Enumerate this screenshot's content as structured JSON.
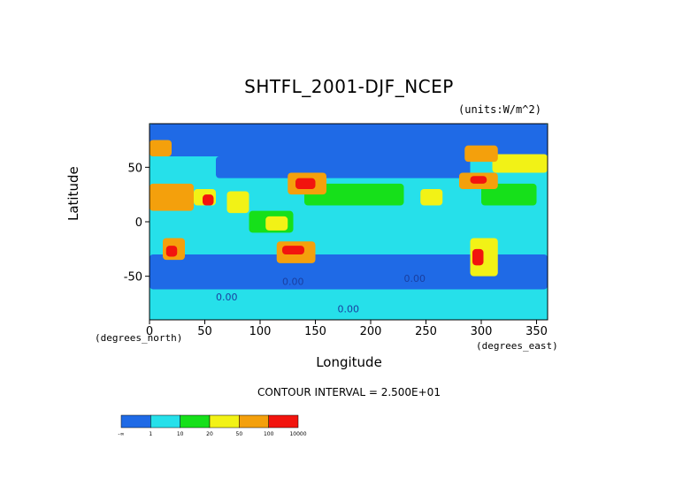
{
  "chart_data": {
    "type": "heatmap",
    "title": "SHTFL_2001-DJF_NCEP",
    "units": "(units:W/m^2)",
    "xlabel": "Longitude",
    "ylabel": "Latitude",
    "x_axis_note": "(degrees_east)",
    "y_axis_note": "(degrees_north)",
    "xlim": [
      0,
      360
    ],
    "ylim": [
      -90,
      90
    ],
    "x_ticks": [
      0,
      50,
      100,
      150,
      200,
      250,
      300,
      350
    ],
    "y_ticks": [
      50,
      0,
      -50
    ],
    "contour_interval": "CONTOUR INTERVAL = 2.500E+01",
    "contour_labels": [
      "0.00",
      "0.00",
      "0.00",
      "0.00"
    ],
    "colorbar": {
      "colors": [
        "#1f6ae6",
        "#26e0ea",
        "#16e01a",
        "#f2f216",
        "#f4a00c",
        "#f2140e"
      ],
      "tick_labels": [
        "-∞",
        "1",
        "10",
        "20",
        "50",
        "100",
        "10000"
      ]
    },
    "regions": [
      {
        "name": "southern-ocean-band",
        "lon": [
          0,
          360
        ],
        "lat": [
          -62,
          -30
        ],
        "bin": 0
      },
      {
        "name": "antarctic-coast",
        "lon": [
          0,
          360
        ],
        "lat": [
          -90,
          -62
        ],
        "bin": 1
      },
      {
        "name": "tropical-pacific",
        "lon": [
          120,
          290
        ],
        "lat": [
          -30,
          20
        ],
        "bin": 1
      },
      {
        "name": "tropical-indian",
        "lon": [
          40,
          120
        ],
        "lat": [
          -30,
          20
        ],
        "bin": 1
      },
      {
        "name": "tropical-atlantic",
        "lon": [
          300,
          360
        ],
        "lat": [
          -30,
          20
        ],
        "bin": 1
      },
      {
        "name": "subtropical-north-pacific",
        "lon": [
          140,
          230
        ],
        "lat": [
          15,
          35
        ],
        "bin": 2
      },
      {
        "name": "subtropical-north-atlantic",
        "lon": [
          300,
          350
        ],
        "lat": [
          15,
          35
        ],
        "bin": 2
      },
      {
        "name": "north-polar-cap",
        "lon": [
          0,
          360
        ],
        "lat": [
          60,
          90
        ],
        "bin": 0
      },
      {
        "name": "siberia-canada",
        "lon": [
          60,
          290
        ],
        "lat": [
          40,
          60
        ],
        "bin": 0
      },
      {
        "name": "sahara",
        "lon": [
          0,
          40
        ],
        "lat": [
          10,
          35
        ],
        "bin": 4
      },
      {
        "name": "kuroshio",
        "lon": [
          125,
          160
        ],
        "lat": [
          25,
          45
        ],
        "bin": 4
      },
      {
        "name": "kuroshio-core",
        "lon": [
          132,
          150
        ],
        "lat": [
          30,
          40
        ],
        "bin": 5
      },
      {
        "name": "gulf-stream",
        "lon": [
          280,
          315
        ],
        "lat": [
          30,
          45
        ],
        "bin": 4
      },
      {
        "name": "gulf-stream-core",
        "lon": [
          290,
          305
        ],
        "lat": [
          35,
          42
        ],
        "bin": 5
      },
      {
        "name": "australia",
        "lon": [
          115,
          150
        ],
        "lat": [
          -38,
          -18
        ],
        "bin": 4
      },
      {
        "name": "australia-core",
        "lon": [
          120,
          140
        ],
        "lat": [
          -30,
          -22
        ],
        "bin": 5
      },
      {
        "name": "south-america",
        "lon": [
          290,
          315
        ],
        "lat": [
          -50,
          -15
        ],
        "bin": 3
      },
      {
        "name": "south-america-core",
        "lon": [
          292,
          302
        ],
        "lat": [
          -40,
          -25
        ],
        "bin": 5
      },
      {
        "name": "southern-africa",
        "lon": [
          12,
          32
        ],
        "lat": [
          -35,
          -15
        ],
        "bin": 4
      },
      {
        "name": "southern-africa-core",
        "lon": [
          15,
          25
        ],
        "lat": [
          -32,
          -22
        ],
        "bin": 5
      },
      {
        "name": "arabia",
        "lon": [
          40,
          60
        ],
        "lat": [
          15,
          30
        ],
        "bin": 3
      },
      {
        "name": "arabia-core",
        "lon": [
          48,
          58
        ],
        "lat": [
          15,
          25
        ],
        "bin": 5
      },
      {
        "name": "mexico",
        "lon": [
          245,
          265
        ],
        "lat": [
          15,
          30
        ],
        "bin": 3
      },
      {
        "name": "india",
        "lon": [
          70,
          90
        ],
        "lat": [
          8,
          28
        ],
        "bin": 3
      },
      {
        "name": "north-atlantic-subpolar",
        "lon": [
          310,
          360
        ],
        "lat": [
          45,
          62
        ],
        "bin": 3
      },
      {
        "name": "norwegian-sea",
        "lon": [
          0,
          20
        ],
        "lat": [
          60,
          75
        ],
        "bin": 4
      },
      {
        "name": "canadian-arctic",
        "lon": [
          285,
          315
        ],
        "lat": [
          55,
          70
        ],
        "bin": 4
      },
      {
        "name": "west-pacific-warm-pool",
        "lon": [
          90,
          130
        ],
        "lat": [
          -10,
          10
        ],
        "bin": 2
      },
      {
        "name": "maritime-continent",
        "lon": [
          105,
          125
        ],
        "lat": [
          -8,
          5
        ],
        "bin": 3
      }
    ]
  }
}
